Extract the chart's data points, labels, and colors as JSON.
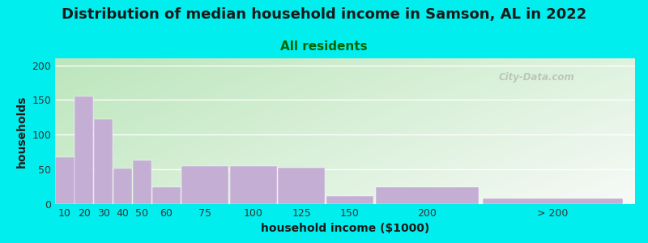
{
  "title": "Distribution of median household income in Samson, AL in 2022",
  "subtitle": "All residents",
  "xlabel": "household income ($1000)",
  "ylabel": "households",
  "background_outer": "#00EEEE",
  "bar_color": "#c4aed4",
  "categories": [
    "10",
    "20",
    "30",
    "40",
    "50",
    "60",
    "75",
    "100",
    "125",
    "150",
    "200",
    "> 200"
  ],
  "values": [
    68,
    155,
    122,
    51,
    63,
    25,
    55,
    55,
    52,
    12,
    24,
    8
  ],
  "bar_lefts": [
    5,
    15,
    25,
    35,
    45,
    55,
    70,
    95,
    120,
    145,
    170,
    225
  ],
  "bar_widths": [
    10,
    10,
    10,
    10,
    10,
    15,
    25,
    25,
    25,
    25,
    55,
    75
  ],
  "ylim": [
    0,
    210
  ],
  "yticks": [
    0,
    50,
    100,
    150,
    200
  ],
  "xmin": 5,
  "xmax": 305,
  "title_fontsize": 13,
  "subtitle_fontsize": 11,
  "label_fontsize": 10,
  "tick_fontsize": 9,
  "watermark": "City-Data.com",
  "title_color": "#1a1a1a",
  "subtitle_color": "#006600",
  "axis_label_color": "#1a1a1a"
}
